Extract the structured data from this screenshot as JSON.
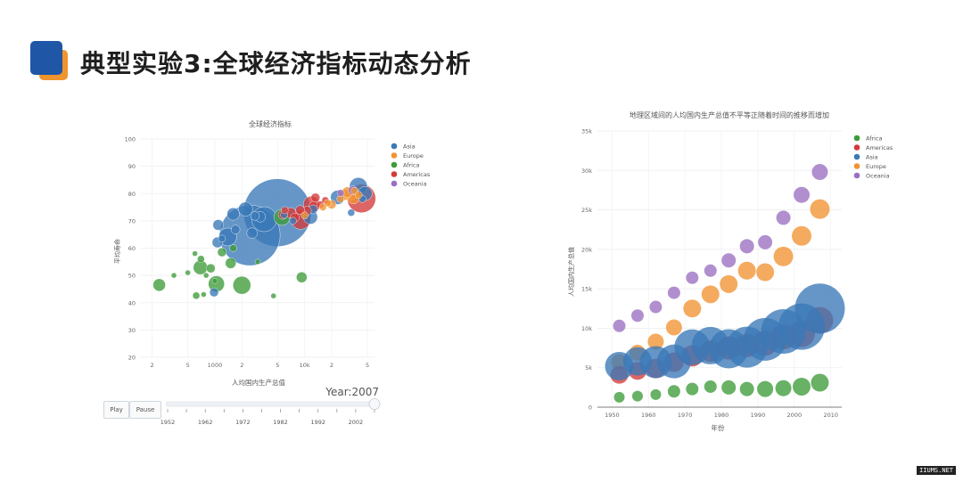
{
  "slide": {
    "title": "典型实验3:全球经济指标动态分析"
  },
  "colors": {
    "Asia": "#3a79b7",
    "Europe": "#f19333",
    "Africa": "#3d9b3a",
    "Americas": "#d33a3a",
    "Oceania": "#9b6fc2",
    "logo_blue": "#1f56a6",
    "logo_orange": "#f0942d"
  },
  "animation": {
    "year_label": "Year:2007",
    "play_label": "Play",
    "pause_label": "Pause",
    "slider_ticks": [
      "1952",
      "1962",
      "1972",
      "1982",
      "1992",
      "2002"
    ],
    "slider_value": 2007
  },
  "watermark": "IIUMS.NET",
  "chart_data": [
    {
      "type": "scatter",
      "title": "全球经济指标",
      "xlabel": "人均国内生产总值",
      "ylabel": "平均寿命",
      "x_scale": "log",
      "xlim": [
        150,
        60000
      ],
      "ylim": [
        20,
        100
      ],
      "y_ticks": [
        "20",
        "30",
        "40",
        "50",
        "60",
        "70",
        "80",
        "90",
        "100"
      ],
      "x_ticks": [
        {
          "v": 200,
          "t": "2"
        },
        {
          "v": 500,
          "t": "5"
        },
        {
          "v": 1000,
          "t": "1000"
        },
        {
          "v": 2000,
          "t": "2"
        },
        {
          "v": 5000,
          "t": "5"
        },
        {
          "v": 10000,
          "t": "10k"
        },
        {
          "v": 20000,
          "t": "2"
        },
        {
          "v": 50000,
          "t": "5"
        }
      ],
      "legend": [
        "Asia",
        "Europe",
        "Africa",
        "Americas",
        "Oceania"
      ],
      "legend_position": "top-right",
      "points": [
        {
          "c": "Asia",
          "x": 4960,
          "y": 73,
          "s": 38
        },
        {
          "c": "Asia",
          "x": 2450,
          "y": 64.7,
          "s": 34
        },
        {
          "c": "Asia",
          "x": 3540,
          "y": 70.6,
          "s": 14
        },
        {
          "c": "Asia",
          "x": 1090,
          "y": 68.5,
          "s": 6
        },
        {
          "c": "Asia",
          "x": 1390,
          "y": 64.1,
          "s": 10
        },
        {
          "c": "Asia",
          "x": 2600,
          "y": 65.5,
          "s": 6
        },
        {
          "c": "Asia",
          "x": 1600,
          "y": 72.5,
          "s": 7
        },
        {
          "c": "Asia",
          "x": 2200,
          "y": 74.3,
          "s": 8
        },
        {
          "c": "Asia",
          "x": 3200,
          "y": 71.5,
          "s": 6
        },
        {
          "c": "Asia",
          "x": 39700,
          "y": 82.6,
          "s": 10
        },
        {
          "c": "Asia",
          "x": 47100,
          "y": 80,
          "s": 8
        },
        {
          "c": "Asia",
          "x": 23300,
          "y": 78.6,
          "s": 8
        },
        {
          "c": "Asia",
          "x": 12400,
          "y": 74.2,
          "s": 5
        },
        {
          "c": "Asia",
          "x": 11600,
          "y": 71.4,
          "s": 8
        },
        {
          "c": "Asia",
          "x": 1070,
          "y": 62.1,
          "s": 6
        },
        {
          "c": "Asia",
          "x": 980,
          "y": 43.8,
          "s": 5
        },
        {
          "c": "Asia",
          "x": 1700,
          "y": 66.8,
          "s": 5
        },
        {
          "c": "Asia",
          "x": 2800,
          "y": 71.8,
          "s": 5
        },
        {
          "c": "Asia",
          "x": 33000,
          "y": 73,
          "s": 4
        },
        {
          "c": "Asia",
          "x": 7400,
          "y": 70,
          "s": 4
        },
        {
          "c": "Asia",
          "x": 1200,
          "y": 63.5,
          "s": 4
        },
        {
          "c": "Asia",
          "x": 5900,
          "y": 72.2,
          "s": 4
        },
        {
          "c": "Asia",
          "x": 44000,
          "y": 78,
          "s": 4
        },
        {
          "c": "Americas",
          "x": 42900,
          "y": 78.2,
          "s": 16
        },
        {
          "c": "Americas",
          "x": 9060,
          "y": 70.5,
          "s": 11
        },
        {
          "c": "Americas",
          "x": 11900,
          "y": 76.1,
          "s": 9
        },
        {
          "c": "Americas",
          "x": 12800,
          "y": 75.3,
          "s": 6
        },
        {
          "c": "Americas",
          "x": 7000,
          "y": 72.9,
          "s": 6
        },
        {
          "c": "Americas",
          "x": 7800,
          "y": 71.2,
          "s": 5
        },
        {
          "c": "Americas",
          "x": 13200,
          "y": 78.5,
          "s": 5
        },
        {
          "c": "Americas",
          "x": 10600,
          "y": 73.7,
          "s": 5
        },
        {
          "c": "Americas",
          "x": 5700,
          "y": 72.2,
          "s": 5
        },
        {
          "c": "Americas",
          "x": 8900,
          "y": 74,
          "s": 5
        },
        {
          "c": "Americas",
          "x": 6000,
          "y": 73.9,
          "s": 4
        },
        {
          "c": "Americas",
          "x": 15000,
          "y": 76,
          "s": 4
        },
        {
          "c": "Americas",
          "x": 17000,
          "y": 77.5,
          "s": 4
        },
        {
          "c": "Europe",
          "x": 33000,
          "y": 80,
          "s": 7
        },
        {
          "c": "Europe",
          "x": 35000,
          "y": 78.5,
          "s": 7
        },
        {
          "c": "Europe",
          "x": 28000,
          "y": 79.5,
          "s": 6
        },
        {
          "c": "Europe",
          "x": 30000,
          "y": 80.5,
          "s": 6
        },
        {
          "c": "Europe",
          "x": 20000,
          "y": 76,
          "s": 5
        },
        {
          "c": "Europe",
          "x": 16000,
          "y": 75,
          "s": 4
        },
        {
          "c": "Europe",
          "x": 10000,
          "y": 72,
          "s": 4
        },
        {
          "c": "Europe",
          "x": 36000,
          "y": 81,
          "s": 4
        },
        {
          "c": "Europe",
          "x": 25000,
          "y": 78,
          "s": 4
        },
        {
          "c": "Europe",
          "x": 18000,
          "y": 76.5,
          "s": 4
        },
        {
          "c": "Europe",
          "x": 40000,
          "y": 79.5,
          "s": 4
        },
        {
          "c": "Africa",
          "x": 1040,
          "y": 46.9,
          "s": 9
        },
        {
          "c": "Africa",
          "x": 690,
          "y": 52.9,
          "s": 8
        },
        {
          "c": "Africa",
          "x": 5580,
          "y": 71.3,
          "s": 9
        },
        {
          "c": "Africa",
          "x": 2000,
          "y": 46.4,
          "s": 10
        },
        {
          "c": "Africa",
          "x": 1500,
          "y": 54.5,
          "s": 6
        },
        {
          "c": "Africa",
          "x": 240,
          "y": 46.5,
          "s": 7
        },
        {
          "c": "Africa",
          "x": 9270,
          "y": 49.3,
          "s": 6
        },
        {
          "c": "Africa",
          "x": 1200,
          "y": 58.5,
          "s": 5
        },
        {
          "c": "Africa",
          "x": 900,
          "y": 52.6,
          "s": 5
        },
        {
          "c": "Africa",
          "x": 620,
          "y": 42.6,
          "s": 4
        },
        {
          "c": "Africa",
          "x": 1600,
          "y": 60,
          "s": 4
        },
        {
          "c": "Africa",
          "x": 700,
          "y": 56,
          "s": 4
        },
        {
          "c": "Africa",
          "x": 4500,
          "y": 42.5,
          "s": 3
        },
        {
          "c": "Africa",
          "x": 800,
          "y": 50,
          "s": 3
        },
        {
          "c": "Africa",
          "x": 600,
          "y": 58,
          "s": 3
        },
        {
          "c": "Africa",
          "x": 500,
          "y": 51,
          "s": 3
        },
        {
          "c": "Africa",
          "x": 350,
          "y": 50,
          "s": 3
        },
        {
          "c": "Africa",
          "x": 1000,
          "y": 48,
          "s": 3
        },
        {
          "c": "Africa",
          "x": 3000,
          "y": 55,
          "s": 3
        },
        {
          "c": "Africa",
          "x": 750,
          "y": 43,
          "s": 3
        },
        {
          "c": "Oceania",
          "x": 34400,
          "y": 81.2,
          "s": 5
        },
        {
          "c": "Oceania",
          "x": 25200,
          "y": 80.2,
          "s": 4
        }
      ]
    },
    {
      "type": "scatter",
      "title": "地理区域间的人均国内生产总值不平等正随着时间的推移而增加",
      "xlabel": "年份",
      "ylabel": "人均国内生产总值",
      "xlim": [
        1946,
        2013
      ],
      "ylim": [
        0,
        35000
      ],
      "y_ticks": [
        {
          "v": 0,
          "t": "0"
        },
        {
          "v": 5000,
          "t": "5k"
        },
        {
          "v": 10000,
          "t": "10k"
        },
        {
          "v": 15000,
          "t": "15k"
        },
        {
          "v": 20000,
          "t": "20k"
        },
        {
          "v": 25000,
          "t": "25k"
        },
        {
          "v": 30000,
          "t": "30k"
        },
        {
          "v": 35000,
          "t": "35k"
        }
      ],
      "x_ticks": [
        {
          "v": 1950,
          "t": "1950"
        },
        {
          "v": 1960,
          "t": "1960"
        },
        {
          "v": 1970,
          "t": "1970"
        },
        {
          "v": 1980,
          "t": "1980"
        },
        {
          "v": 1990,
          "t": "1990"
        },
        {
          "v": 2000,
          "t": "2000"
        },
        {
          "v": 2010,
          "t": "2010"
        }
      ],
      "legend": [
        "Africa",
        "Americas",
        "Asia",
        "Europe",
        "Oceania"
      ],
      "legend_position": "top-right",
      "x": [
        1952,
        1957,
        1962,
        1967,
        1972,
        1977,
        1982,
        1987,
        1992,
        1997,
        2002,
        2007
      ],
      "series": [
        {
          "name": "Oceania",
          "values": [
            10300,
            11600,
            12700,
            14500,
            16400,
            17300,
            18600,
            20400,
            20900,
            24000,
            26900,
            29800
          ],
          "sizes": [
            7,
            7,
            7,
            7,
            7,
            7,
            8,
            8,
            8,
            8,
            9,
            9
          ]
        },
        {
          "name": "Europe",
          "values": [
            5700,
            6900,
            8300,
            10100,
            12500,
            14300,
            15600,
            17300,
            17100,
            19100,
            21700,
            25100
          ],
          "sizes": [
            9,
            9,
            9,
            9,
            10,
            10,
            10,
            10,
            10,
            11,
            11,
            11
          ]
        },
        {
          "name": "Americas",
          "values": [
            4100,
            4600,
            4900,
            5700,
            6500,
            7100,
            7500,
            7800,
            8100,
            8900,
            9300,
            11000
          ],
          "sizes": [
            10,
            10,
            11,
            11,
            12,
            12,
            13,
            13,
            14,
            14,
            15,
            15
          ]
        },
        {
          "name": "Asia",
          "values": [
            5200,
            5800,
            5700,
            5800,
            7600,
            7800,
            7400,
            7600,
            8600,
            9600,
            10200,
            12500
          ],
          "sizes": [
            16,
            16,
            18,
            19,
            20,
            21,
            22,
            23,
            24,
            25,
            26,
            28
          ]
        },
        {
          "name": "Africa",
          "values": [
            1250,
            1400,
            1600,
            2000,
            2300,
            2600,
            2500,
            2300,
            2300,
            2400,
            2600,
            3100
          ],
          "sizes": [
            6,
            6,
            6,
            7,
            7,
            7,
            8,
            8,
            9,
            9,
            10,
            10
          ]
        }
      ]
    }
  ]
}
